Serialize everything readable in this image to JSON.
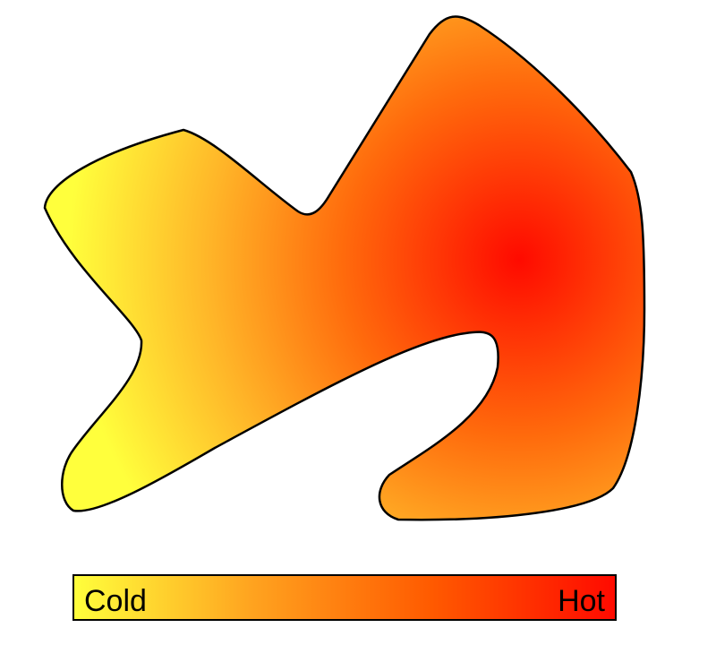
{
  "diagram": {
    "shape": {
      "fill_colors": {
        "cold": "#ffff3c",
        "warm": "#ff9a1e",
        "hot": "#ff0a00"
      },
      "outline_color": "#000000"
    },
    "legend": {
      "cold_label": "Cold",
      "hot_label": "Hot",
      "gradient": [
        "#ffff3c",
        "#ffa31f",
        "#ff5a00",
        "#ff0a00"
      ],
      "border_color": "#000000"
    }
  }
}
